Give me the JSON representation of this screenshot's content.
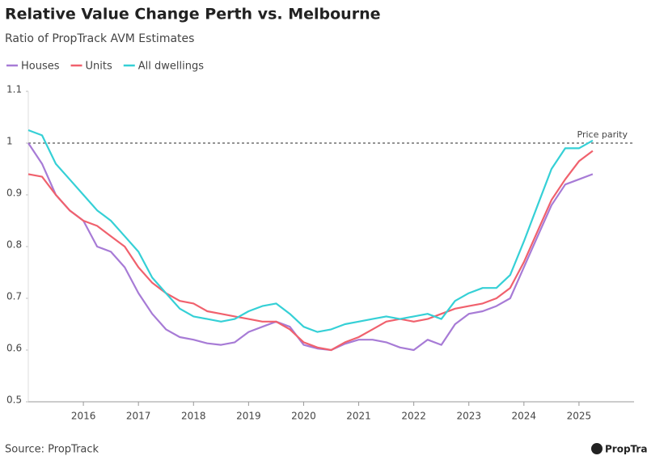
{
  "chart_data": {
    "type": "line",
    "title": "Relative Value Change Perth vs. Melbourne",
    "subtitle": "Ratio of PropTrack AVM Estimates",
    "source": "Source: PropTrack",
    "brand": "PropTrack",
    "annotation": {
      "text": "Price parity",
      "value": 1
    },
    "x": [
      2015,
      2015.25,
      2015.5,
      2015.75,
      2016,
      2016.25,
      2016.5,
      2016.75,
      2017,
      2017.25,
      2017.5,
      2017.75,
      2018,
      2018.25,
      2018.5,
      2018.75,
      2019,
      2019.25,
      2019.5,
      2019.75,
      2020,
      2020.25,
      2020.5,
      2020.75,
      2021,
      2021.25,
      2021.5,
      2021.75,
      2022,
      2022.25,
      2022.5,
      2022.75,
      2023,
      2023.25,
      2023.5,
      2023.75,
      2024,
      2024.25,
      2024.5,
      2024.75,
      2025,
      2025.25
    ],
    "series": [
      {
        "name": "Houses",
        "color": "#a77bd6",
        "values": [
          1.0,
          0.96,
          0.9,
          0.87,
          0.85,
          0.8,
          0.79,
          0.76,
          0.71,
          0.67,
          0.64,
          0.625,
          0.62,
          0.613,
          0.61,
          0.615,
          0.635,
          0.645,
          0.655,
          0.645,
          0.61,
          0.603,
          0.6,
          0.612,
          0.62,
          0.62,
          0.615,
          0.605,
          0.6,
          0.62,
          0.61,
          0.65,
          0.67,
          0.675,
          0.685,
          0.7,
          0.76,
          0.82,
          0.88,
          0.92,
          0.93,
          0.94
        ]
      },
      {
        "name": "Units",
        "color": "#f0616d",
        "values": [
          0.94,
          0.935,
          0.9,
          0.87,
          0.85,
          0.84,
          0.82,
          0.8,
          0.76,
          0.73,
          0.71,
          0.695,
          0.69,
          0.675,
          0.67,
          0.665,
          0.66,
          0.655,
          0.655,
          0.64,
          0.615,
          0.605,
          0.6,
          0.615,
          0.625,
          0.64,
          0.655,
          0.66,
          0.655,
          0.66,
          0.67,
          0.68,
          0.685,
          0.69,
          0.7,
          0.72,
          0.77,
          0.83,
          0.89,
          0.93,
          0.965,
          0.985
        ]
      },
      {
        "name": "All dwellings",
        "color": "#35d0d6",
        "values": [
          1.025,
          1.015,
          0.96,
          0.93,
          0.9,
          0.87,
          0.85,
          0.82,
          0.79,
          0.74,
          0.71,
          0.68,
          0.665,
          0.66,
          0.655,
          0.66,
          0.675,
          0.685,
          0.69,
          0.67,
          0.645,
          0.635,
          0.64,
          0.65,
          0.655,
          0.66,
          0.665,
          0.66,
          0.665,
          0.67,
          0.66,
          0.695,
          0.71,
          0.72,
          0.72,
          0.745,
          0.81,
          0.88,
          0.95,
          0.99,
          0.99,
          1.005
        ]
      }
    ],
    "xlim": [
      2015,
      2026
    ],
    "xticks": [
      2016,
      2017,
      2018,
      2019,
      2020,
      2021,
      2022,
      2023,
      2024,
      2025
    ],
    "ylim": [
      0.5,
      1.1
    ],
    "yticks": [
      0.5,
      0.6,
      0.7,
      0.8,
      0.9,
      1,
      1.1
    ],
    "legend": "top-left"
  }
}
